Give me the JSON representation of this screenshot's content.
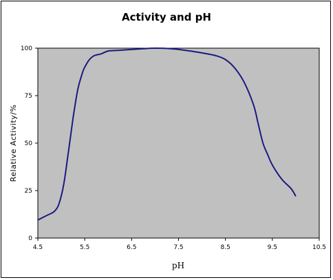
{
  "chart_data": {
    "type": "line",
    "title": "Activity and pH",
    "xlabel": "pH",
    "ylabel": "Relative Activity/%",
    "xlim": [
      4.5,
      10.5
    ],
    "ylim": [
      0,
      100
    ],
    "x_ticks": [
      "4.5",
      "5.5",
      "6.5",
      "7.5",
      "8.5",
      "9.5",
      "10.5"
    ],
    "y_ticks": [
      "0",
      "25",
      "50",
      "75",
      "100"
    ],
    "grid": false,
    "legend": "none",
    "plot_background": "#c0c0c0",
    "line_color": "#1a1a80",
    "series": [
      {
        "x": [
          4.5,
          4.7,
          4.85,
          4.95,
          5.05,
          5.15,
          5.25,
          5.35,
          5.45,
          5.5,
          5.6,
          5.7,
          5.85,
          6.0,
          6.2,
          6.5,
          6.8,
          7.0,
          7.3,
          7.6,
          8.0,
          8.3,
          8.5,
          8.7,
          8.9,
          9.1,
          9.2,
          9.3,
          9.4,
          9.5,
          9.7,
          9.9,
          10.0
        ],
        "y": [
          9.5,
          12,
          14,
          18,
          28,
          45,
          63,
          78,
          87,
          90,
          94,
          96,
          97,
          98.5,
          98.8,
          99.3,
          99.8,
          100,
          99.8,
          99,
          97.5,
          96,
          94,
          89.5,
          82,
          70,
          60,
          50,
          44,
          38.5,
          31,
          26,
          22
        ]
      }
    ]
  }
}
